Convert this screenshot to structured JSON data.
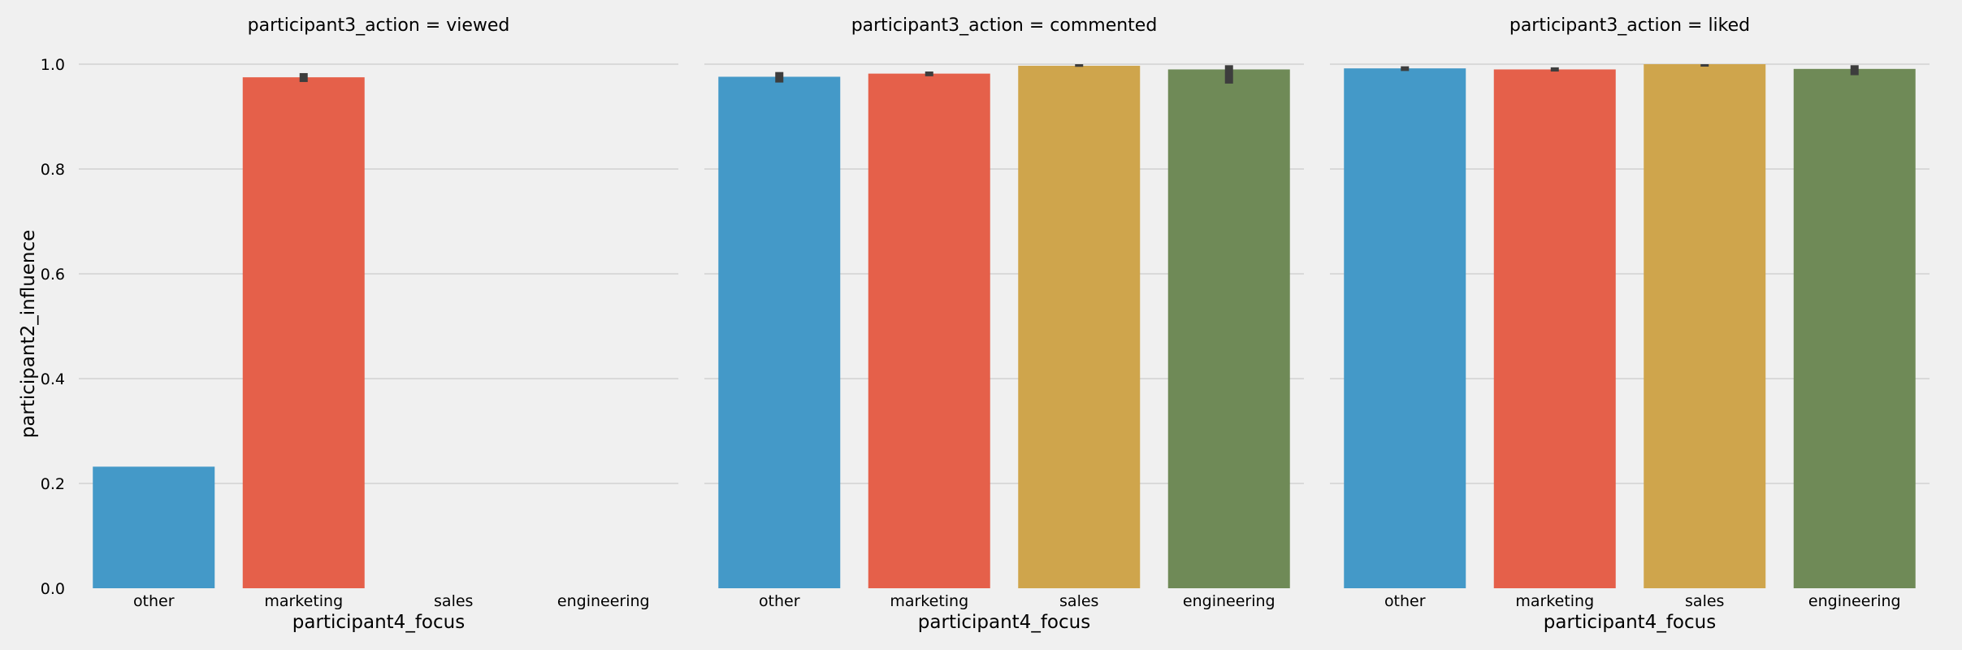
{
  "chart_data": {
    "type": "bar",
    "ylabel": "participant2_influence",
    "ylim": [
      0,
      1.05
    ],
    "yticks": [
      "0.0",
      "0.2",
      "0.4",
      "0.6",
      "0.8",
      "1.0"
    ],
    "ytick_values": [
      0,
      0.2,
      0.4,
      0.6,
      0.8,
      1.0
    ],
    "grid": "horizontal",
    "colors": [
      "#4499c8",
      "#e5604a",
      "#cfa54c",
      "#6f8a57"
    ],
    "error_color": "#3d3d3d",
    "panels": [
      {
        "title": "participant3_action = viewed",
        "xlabel": "participant4_focus",
        "categories": [
          "other",
          "marketing",
          "sales",
          "engineering"
        ],
        "values": [
          0.232,
          0.975,
          null,
          null
        ],
        "err_low": [
          null,
          0.966,
          null,
          null
        ],
        "err_high": [
          null,
          0.983,
          null,
          null
        ]
      },
      {
        "title": "participant3_action = commented",
        "xlabel": "participant4_focus",
        "categories": [
          "other",
          "marketing",
          "sales",
          "engineering"
        ],
        "values": [
          0.976,
          0.982,
          0.997,
          0.99
        ],
        "err_low": [
          0.965,
          0.977,
          0.995,
          0.963
        ],
        "err_high": [
          0.985,
          0.986,
          1.0,
          0.998
        ]
      },
      {
        "title": "participant3_action = liked",
        "xlabel": "participant4_focus",
        "categories": [
          "other",
          "marketing",
          "sales",
          "engineering"
        ],
        "values": [
          0.992,
          0.99,
          1.0,
          0.991
        ],
        "err_low": [
          0.987,
          0.986,
          0.999,
          0.979
        ],
        "err_high": [
          0.996,
          0.994,
          1.0,
          0.998
        ]
      }
    ]
  }
}
